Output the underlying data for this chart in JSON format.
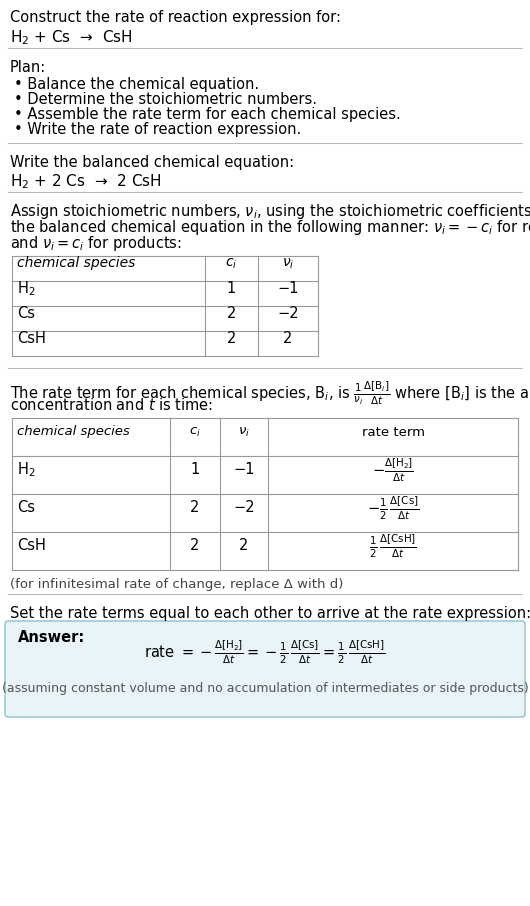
{
  "bg_color": "#ffffff",
  "text_color": "#000000",
  "answer_bg": "#e8f4f8",
  "answer_border": "#a0c8d8",
  "title_text": "Construct the rate of reaction expression for:",
  "reaction_unbalanced": "H$_2$ + Cs  →  CsH",
  "plan_header": "Plan:",
  "plan_items": [
    "• Balance the chemical equation.",
    "• Determine the stoichiometric numbers.",
    "• Assemble the rate term for each chemical species.",
    "• Write the rate of reaction expression."
  ],
  "balanced_header": "Write the balanced chemical equation:",
  "balanced_equation": "H$_2$ + 2 Cs  →  2 CsH",
  "stoich_intro_lines": [
    "Assign stoichiometric numbers, $\\nu_i$, using the stoichiometric coefficients, $c_i$, from",
    "the balanced chemical equation in the following manner: $\\nu_i = -c_i$ for reactants",
    "and $\\nu_i = c_i$ for products:"
  ],
  "table1_headers": [
    "chemical species",
    "$c_i$",
    "$\\nu_i$"
  ],
  "table1_rows": [
    [
      "H$_2$",
      "1",
      "−1"
    ],
    [
      "Cs",
      "2",
      "−2"
    ],
    [
      "CsH",
      "2",
      "2"
    ]
  ],
  "rate_intro_lines": [
    "The rate term for each chemical species, B$_i$, is $\\frac{1}{\\nu_i}\\frac{\\Delta[\\mathrm{B}_i]}{\\Delta t}$ where [B$_i$] is the amount",
    "concentration and $t$ is time:"
  ],
  "table2_headers": [
    "chemical species",
    "$c_i$",
    "$\\nu_i$",
    "rate term"
  ],
  "table2_rows": [
    [
      "H$_2$",
      "1",
      "−1",
      "$-\\frac{\\Delta[\\mathrm{H_2}]}{\\Delta t}$"
    ],
    [
      "Cs",
      "2",
      "−2",
      "$-\\frac{1}{2}\\,\\frac{\\Delta[\\mathrm{Cs}]}{\\Delta t}$"
    ],
    [
      "CsH",
      "2",
      "2",
      "$\\frac{1}{2}\\,\\frac{\\Delta[\\mathrm{CsH}]}{\\Delta t}$"
    ]
  ],
  "infinitesimal_note": "(for infinitesimal rate of change, replace Δ with d)",
  "set_equal_text": "Set the rate terms equal to each other to arrive at the rate expression:",
  "answer_label": "Answer:",
  "rate_expression": "rate $= -\\frac{\\Delta[\\mathrm{H_2}]}{\\Delta t} = -\\frac{1}{2}\\,\\frac{\\Delta[\\mathrm{Cs}]}{\\Delta t} = \\frac{1}{2}\\,\\frac{\\Delta[\\mathrm{CsH}]}{\\Delta t}$",
  "assumption_note": "(assuming constant volume and no accumulation of intermediates or side products)"
}
